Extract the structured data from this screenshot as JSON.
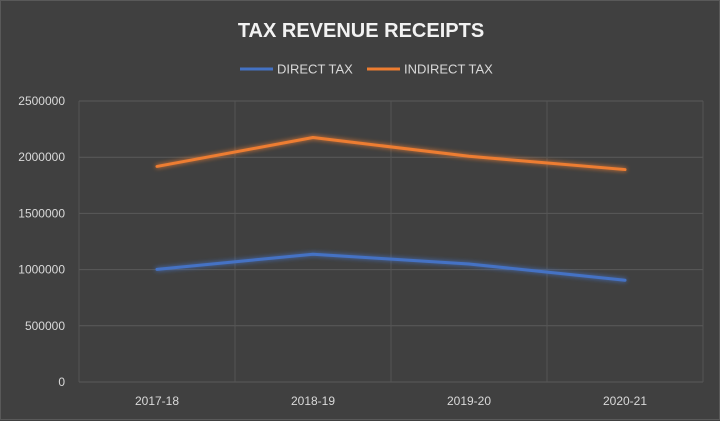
{
  "chart_data": {
    "type": "line",
    "title": "TAX REVENUE RECEIPTS",
    "xlabel": "",
    "ylabel": "",
    "categories": [
      "2017-18",
      "2018-19",
      "2019-20",
      "2020-21"
    ],
    "series": [
      {
        "name": "DIRECT TAX",
        "color": "#4472c4",
        "values": [
          1002000,
          1137000,
          1050000,
          905000
        ]
      },
      {
        "name": "INDIRECT TAX",
        "color": "#ed7d31",
        "values": [
          1918000,
          2175000,
          2008000,
          1890000
        ]
      }
    ],
    "ylim": [
      0,
      2500000
    ],
    "yticks": [
      "0",
      "500000",
      "1000000",
      "1500000",
      "2000000",
      "2500000"
    ],
    "grid": true,
    "legend_position": "top"
  }
}
